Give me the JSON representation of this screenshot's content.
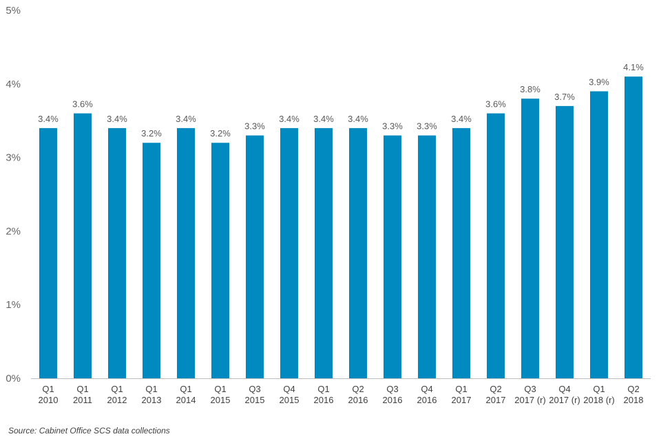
{
  "chart_data": {
    "type": "bar",
    "title": "",
    "xlabel": "",
    "ylabel": "",
    "ylim": [
      0,
      5
    ],
    "yticks": [
      0,
      1,
      2,
      3,
      4,
      5
    ],
    "ytick_labels": [
      "0%",
      "1%",
      "2%",
      "3%",
      "4%",
      "5%"
    ],
    "grid": false,
    "categories": [
      [
        "Q1",
        "2010"
      ],
      [
        "Q1",
        "2011"
      ],
      [
        "Q1",
        "2012"
      ],
      [
        "Q1",
        "2013"
      ],
      [
        "Q1",
        "2014"
      ],
      [
        "Q1",
        "2015"
      ],
      [
        "Q3",
        "2015"
      ],
      [
        "Q4",
        "2015"
      ],
      [
        "Q1",
        "2016"
      ],
      [
        "Q2",
        "2016"
      ],
      [
        "Q3",
        "2016"
      ],
      [
        "Q4",
        "2016"
      ],
      [
        "Q1",
        "2017"
      ],
      [
        "Q2",
        "2017"
      ],
      [
        "Q3",
        "2017 (r)"
      ],
      [
        "Q4",
        "2017 (r)"
      ],
      [
        "Q1",
        "2018 (r)"
      ],
      [
        "Q2",
        "2018"
      ]
    ],
    "values": [
      3.4,
      3.6,
      3.4,
      3.2,
      3.4,
      3.2,
      3.3,
      3.4,
      3.4,
      3.4,
      3.3,
      3.3,
      3.4,
      3.6,
      3.8,
      3.7,
      3.9,
      4.1
    ],
    "value_labels": [
      "3.4%",
      "3.6%",
      "3.4%",
      "3.2%",
      "3.4%",
      "3.2%",
      "3.3%",
      "3.4%",
      "3.4%",
      "3.4%",
      "3.3%",
      "3.3%",
      "3.4%",
      "3.6%",
      "3.8%",
      "3.7%",
      "3.9%",
      "4.1%"
    ],
    "bar_color": "#008AC0",
    "axis_color": "#BFBFBF"
  },
  "source_text": "Source: Cabinet Office SCS data collections"
}
